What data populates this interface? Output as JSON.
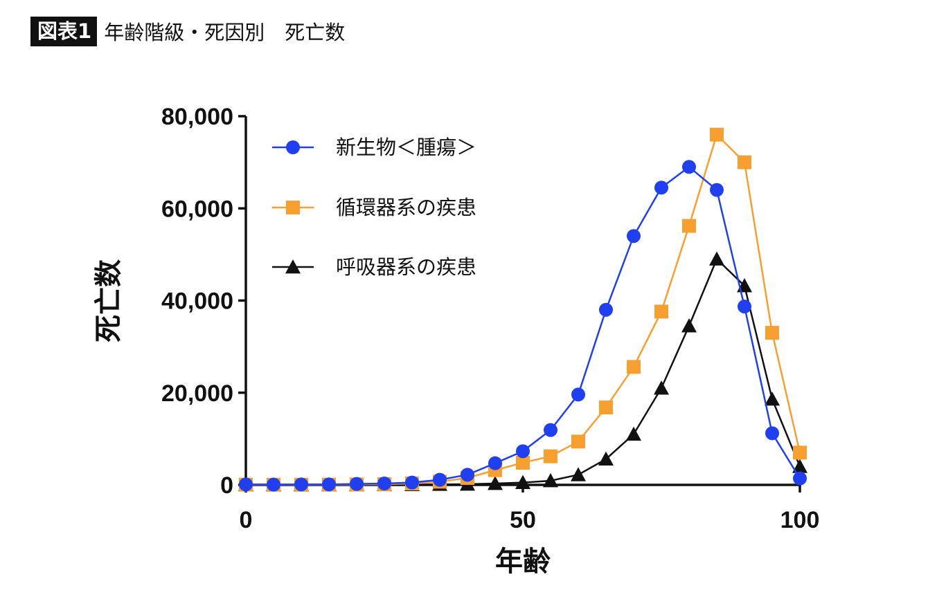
{
  "figure": {
    "badge": "図表1",
    "title": "年齢階級・死因別　死亡数"
  },
  "chart_data": {
    "type": "line",
    "xlabel": "年齢",
    "ylabel": "死亡数",
    "xlim": [
      0,
      100
    ],
    "ylim": [
      0,
      80000
    ],
    "xticks": [
      0,
      50,
      100
    ],
    "xtick_labels": [
      "0",
      "50",
      "100"
    ],
    "yticks": [
      0,
      20000,
      40000,
      60000,
      80000
    ],
    "ytick_labels": [
      "0",
      "20,000",
      "40,000",
      "60,000",
      "80,000"
    ],
    "grid": false,
    "legend": "top-left",
    "x": [
      0,
      5,
      10,
      15,
      20,
      25,
      30,
      35,
      40,
      45,
      50,
      55,
      60,
      65,
      70,
      75,
      80,
      85,
      90,
      95,
      100
    ],
    "series": [
      {
        "name": "新生物＜腫瘍＞",
        "marker": "circle",
        "color": "#1f3ff0",
        "values": [
          100,
          50,
          100,
          100,
          200,
          300,
          500,
          1100,
          2200,
          4700,
          7300,
          11900,
          19600,
          38000,
          54000,
          64500,
          69000,
          64000,
          38700,
          11200,
          1400
        ]
      },
      {
        "name": "循環器系の疾患",
        "marker": "square",
        "color": "#f7a030",
        "values": [
          50,
          30,
          30,
          50,
          100,
          150,
          300,
          700,
          1500,
          3200,
          4800,
          6200,
          9400,
          16800,
          25600,
          37600,
          56200,
          76000,
          70000,
          33000,
          7000
        ]
      },
      {
        "name": "呼吸器系の疾患",
        "marker": "triangle",
        "color": "#111111",
        "values": [
          30,
          10,
          10,
          10,
          20,
          30,
          50,
          100,
          150,
          300,
          500,
          900,
          2200,
          5600,
          11000,
          21000,
          34500,
          49000,
          43200,
          18600,
          4000
        ]
      }
    ]
  }
}
